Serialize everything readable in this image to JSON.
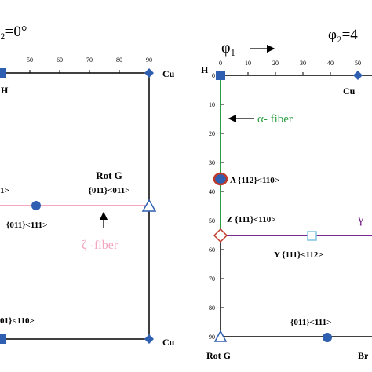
{
  "colors": {
    "frame": "#000000",
    "zeta_fiber": "#f4a6c1",
    "alpha_fiber": "#2e9e44",
    "gamma_fiber": "#7a2a8c",
    "blue_marker": "#2f5fb0",
    "red_marker": "#c0392b",
    "cyan_marker": "#7fc6e0"
  },
  "left_panel": {
    "phi2_title": "₂=0°",
    "x_ticks": [
      "50",
      "60",
      "70",
      "80",
      "90"
    ],
    "labels": {
      "h": "H",
      "cu_top": "Cu",
      "rot_g_title": "Rot G",
      "rot_g_miller": "{011}<011>",
      "left_cut": "1>",
      "goss": "{011}<111>",
      "zeta_fiber": "ζ -fiber",
      "bottom_left": "01}<110>",
      "cu_bottom": "Cu"
    }
  },
  "right_panel": {
    "phi1_label": "φ₁",
    "phi2_title": "φ₂=4",
    "x_ticks": [
      "0",
      "10",
      "20",
      "30",
      "40",
      "50"
    ],
    "y_ticks": [
      "0",
      "10",
      "20",
      "30",
      "40",
      "50",
      "60",
      "70",
      "80",
      "90"
    ],
    "labels": {
      "h": "H",
      "cu": "Cu",
      "alpha_fiber": "α- fiber",
      "a_component": "A {112}<110>",
      "z_component": "Z {111}<110>",
      "gamma_cut": "γ",
      "y_component": "Y {111}<112>",
      "goss_bottom": "{011}<111>",
      "rot_g": "Rot G",
      "bra_cut": "Br"
    }
  }
}
